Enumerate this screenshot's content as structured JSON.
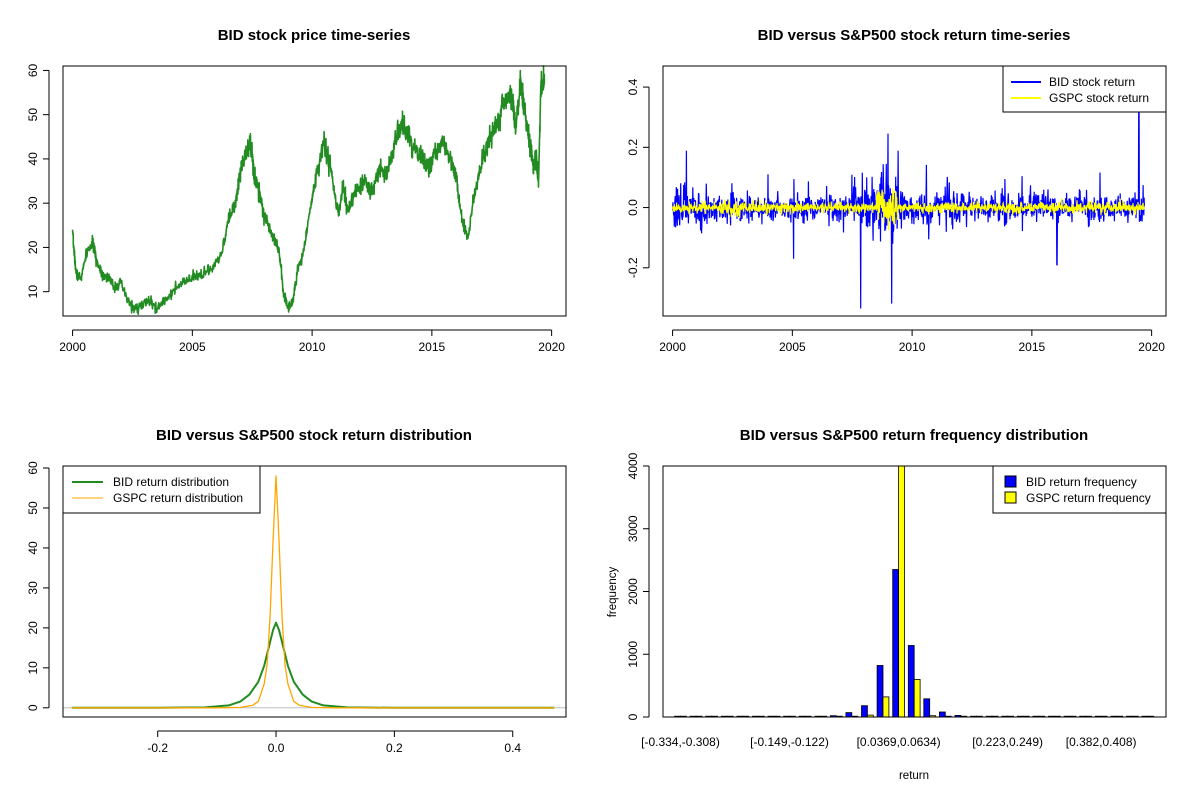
{
  "chart_data": [
    {
      "type": "line",
      "title": "BID stock price time-series",
      "xlabel": "",
      "ylabel": "",
      "xlim": [
        1999.6,
        2020.6
      ],
      "ylim": [
        4.5,
        61
      ],
      "xticks": [
        2000,
        2005,
        2010,
        2015,
        2020
      ],
      "yticks": [
        10,
        20,
        30,
        40,
        50,
        60
      ],
      "grid": false,
      "series": [
        {
          "color": "#228B22",
          "x": [
            2000.0,
            2000.15,
            2000.35,
            2000.6,
            2000.85,
            2001.0,
            2001.25,
            2001.5,
            2001.75,
            2002.0,
            2002.3,
            2002.6,
            2002.9,
            2003.2,
            2003.5,
            2003.8,
            2004.2,
            2004.6,
            2005.0,
            2005.4,
            2005.8,
            2006.2,
            2006.5,
            2006.8,
            2007.0,
            2007.2,
            2007.4,
            2007.6,
            2007.8,
            2008.0,
            2008.2,
            2008.4,
            2008.6,
            2008.8,
            2009.0,
            2009.2,
            2009.4,
            2009.6,
            2009.9,
            2010.2,
            2010.5,
            2010.8,
            2011.1,
            2011.3,
            2011.5,
            2011.7,
            2011.9,
            2012.2,
            2012.5,
            2012.8,
            2013.1,
            2013.4,
            2013.7,
            2014.0,
            2014.3,
            2014.6,
            2014.9,
            2015.2,
            2015.5,
            2015.8,
            2016.0,
            2016.2,
            2016.5,
            2016.8,
            2017.1,
            2017.4,
            2017.7,
            2018.0,
            2018.3,
            2018.5,
            2018.7,
            2018.9,
            2019.1,
            2019.25,
            2019.35,
            2019.45,
            2019.55,
            2019.7
          ],
          "y": [
            23,
            14,
            13,
            19,
            21,
            17,
            14,
            13,
            11,
            12,
            8,
            6,
            7,
            8,
            6,
            8,
            10,
            12,
            13,
            14,
            15,
            18,
            26,
            30,
            37,
            41,
            44,
            36,
            33,
            27,
            25,
            22,
            20,
            10,
            6,
            8,
            15,
            18,
            28,
            37,
            44,
            37,
            27,
            34,
            28,
            31,
            33,
            35,
            32,
            38,
            36,
            43,
            48,
            45,
            42,
            40,
            38,
            42,
            44,
            40,
            36,
            28,
            22,
            33,
            40,
            44,
            48,
            53,
            55,
            47,
            57,
            50,
            43,
            38,
            41,
            35,
            57,
            57
          ]
        }
      ]
    },
    {
      "type": "line",
      "title": "BID versus S&P500 stock return time-series",
      "xlabel": "",
      "ylabel": "",
      "xlim": [
        1999.6,
        2020.6
      ],
      "ylim": [
        -0.36,
        0.47
      ],
      "xticks": [
        2000,
        2005,
        2010,
        2015,
        2020
      ],
      "yticks": [
        -0.2,
        0,
        0.2,
        0.4
      ],
      "ytick_labels": [
        "-0.2",
        "0.0",
        "0.2",
        "0.4"
      ],
      "legend": "top-right",
      "series": [
        {
          "name": "BID stock return",
          "color": "#0000FF"
        },
        {
          "name": "GSPC stock return",
          "color": "#FFFF00"
        }
      ]
    },
    {
      "type": "line",
      "title": "BID versus S&P500 stock return distribution",
      "xlabel": "",
      "ylabel": "",
      "xlim": [
        -0.36,
        0.49
      ],
      "ylim": [
        -2.3,
        60.5
      ],
      "xticks": [
        -0.2,
        0,
        0.2,
        0.4
      ],
      "xtick_labels": [
        "-0.2",
        "0.0",
        "0.2",
        "0.4"
      ],
      "yticks": [
        0,
        10,
        20,
        30,
        40,
        50,
        60
      ],
      "legend": "top-left",
      "series": [
        {
          "name": "BID return distribution",
          "color": "#228B22",
          "x": [
            -0.345,
            -0.2,
            -0.12,
            -0.08,
            -0.06,
            -0.045,
            -0.03,
            -0.02,
            -0.01,
            -0.005,
            0.0,
            0.005,
            0.01,
            0.02,
            0.03,
            0.045,
            0.06,
            0.08,
            0.12,
            0.2,
            0.47
          ],
          "y": [
            0,
            0,
            0.1,
            0.6,
            1.6,
            3.3,
            6.5,
            10.5,
            16.5,
            19.5,
            21.3,
            19.5,
            16.5,
            10.5,
            6.5,
            3.3,
            1.6,
            0.6,
            0.1,
            0,
            0
          ]
        },
        {
          "name": "GSPC return distribution",
          "color": "#FFA500",
          "x": [
            -0.345,
            -0.1,
            -0.06,
            -0.04,
            -0.03,
            -0.02,
            -0.015,
            -0.01,
            -0.005,
            -0.002,
            0.0,
            0.002,
            0.005,
            0.01,
            0.015,
            0.02,
            0.03,
            0.04,
            0.06,
            0.1,
            0.47
          ],
          "y": [
            0,
            0,
            0.1,
            0.6,
            1.6,
            6,
            11,
            23,
            42,
            52,
            58,
            52,
            42,
            23,
            11,
            6,
            1.6,
            0.6,
            0.1,
            0,
            0
          ]
        }
      ]
    },
    {
      "type": "bar",
      "title": "BID versus S&P500 return frequency distribution",
      "xlabel": "return",
      "ylabel": "frequency",
      "ylim": [
        0,
        4000
      ],
      "yticks": [
        0,
        1000,
        2000,
        3000,
        4000
      ],
      "xtick_labels": [
        "[-0.334,-0.308)",
        "[-0.149,-0.122)",
        "[0.0369,0.0634)",
        "[0.223,0.249)",
        "[0.382,0.408)"
      ],
      "xtick_positions": [
        0,
        7,
        14,
        21,
        27
      ],
      "legend": "top-right",
      "series": [
        {
          "name": "BID return frequency",
          "color": "#0000FF",
          "values": [
            1,
            1,
            1,
            1,
            1,
            1,
            2,
            3,
            5,
            10,
            20,
            70,
            180,
            820,
            2350,
            1140,
            290,
            80,
            25,
            8,
            4,
            2,
            1,
            1,
            1,
            1,
            1,
            1,
            1,
            1,
            1
          ]
        },
        {
          "name": "GSPC return frequency",
          "color": "#FFFF00",
          "values": [
            0,
            0,
            0,
            0,
            0,
            0,
            0,
            0,
            0,
            0,
            0,
            0,
            30,
            320,
            4000,
            600,
            20,
            0,
            0,
            0,
            0,
            0,
            0,
            0,
            0,
            0,
            0,
            0,
            0,
            0,
            0
          ]
        }
      ]
    }
  ]
}
